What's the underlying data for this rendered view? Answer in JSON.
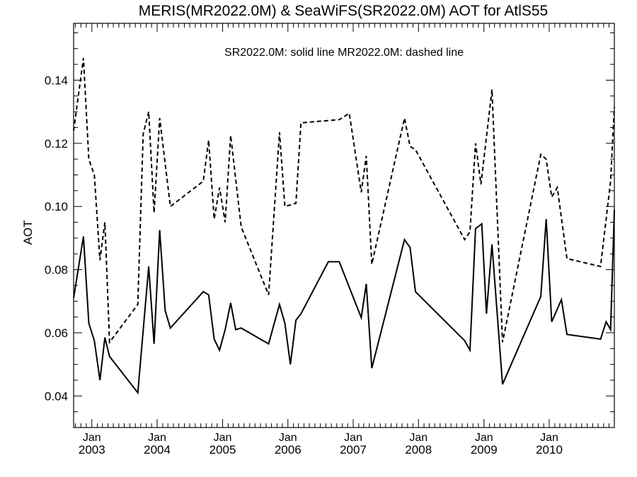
{
  "chart_data": {
    "type": "line",
    "title": "MERIS(MR2022.0M) & SeaWiFS(SR2022.0M)  AOT for AtlS55",
    "annotation": "SR2022.0M: solid line   MR2022.0M: dashed line",
    "xlabel": "",
    "ylabel": "AOT",
    "xlim": [
      "2002-09-21",
      "2010-12-31"
    ],
    "ylim": [
      0.03,
      0.158
    ],
    "y_ticks": [
      0.04,
      0.06,
      0.08,
      0.1,
      0.12,
      0.14
    ],
    "y_tick_labels": [
      "0.04",
      "0.06",
      "0.08",
      "0.10",
      "0.12",
      "0.14"
    ],
    "x_ticks": [
      {
        "date": "2003-01-01",
        "month": "Jan",
        "year": "2003"
      },
      {
        "date": "2004-01-01",
        "month": "Jan",
        "year": "2004"
      },
      {
        "date": "2005-01-01",
        "month": "Jan",
        "year": "2005"
      },
      {
        "date": "2006-01-01",
        "month": "Jan",
        "year": "2006"
      },
      {
        "date": "2007-01-01",
        "month": "Jan",
        "year": "2007"
      },
      {
        "date": "2008-01-01",
        "month": "Jan",
        "year": "2008"
      },
      {
        "date": "2009-01-01",
        "month": "Jan",
        "year": "2009"
      },
      {
        "date": "2010-01-01",
        "month": "Jan",
        "year": "2010"
      }
    ],
    "grid": false,
    "series": [
      {
        "name": "SR2022.0M",
        "style": "solid",
        "color": "#000000",
        "points": [
          [
            "2002-09-21",
            0.071
          ],
          [
            "2002-11-15",
            0.0905
          ],
          [
            "2002-12-15",
            0.063
          ],
          [
            "2003-01-15",
            0.0575
          ],
          [
            "2003-02-15",
            0.045
          ],
          [
            "2003-03-15",
            0.0585
          ],
          [
            "2003-04-10",
            0.0525
          ],
          [
            "2003-09-15",
            0.041
          ],
          [
            "2003-11-15",
            0.081
          ],
          [
            "2003-12-15",
            0.0565
          ],
          [
            "2004-01-15",
            0.0925
          ],
          [
            "2004-02-15",
            0.067
          ],
          [
            "2004-03-15",
            0.0615
          ],
          [
            "2004-09-15",
            0.073
          ],
          [
            "2004-10-15",
            0.072
          ],
          [
            "2004-11-15",
            0.058
          ],
          [
            "2004-12-15",
            0.0545
          ],
          [
            "2005-01-15",
            0.061
          ],
          [
            "2005-02-15",
            0.0695
          ],
          [
            "2005-03-15",
            0.061
          ],
          [
            "2005-04-15",
            0.0615
          ],
          [
            "2005-09-15",
            0.0565
          ],
          [
            "2005-11-15",
            0.069
          ],
          [
            "2005-12-15",
            0.063
          ],
          [
            "2006-01-15",
            0.05
          ],
          [
            "2006-02-15",
            0.064
          ],
          [
            "2006-03-15",
            0.066
          ],
          [
            "2006-08-15",
            0.0825
          ],
          [
            "2006-10-15",
            0.0825
          ],
          [
            "2007-02-15",
            0.0648
          ],
          [
            "2007-03-15",
            0.0755
          ],
          [
            "2007-04-15",
            0.0488
          ],
          [
            "2007-10-15",
            0.0895
          ],
          [
            "2007-11-15",
            0.087
          ],
          [
            "2007-12-15",
            0.073
          ],
          [
            "2008-09-15",
            0.0575
          ],
          [
            "2008-10-15",
            0.0545
          ],
          [
            "2008-11-15",
            0.093
          ],
          [
            "2008-12-20",
            0.0945
          ],
          [
            "2009-01-15",
            0.066
          ],
          [
            "2009-02-15",
            0.088
          ],
          [
            "2009-04-15",
            0.0437
          ],
          [
            "2009-11-15",
            0.0715
          ],
          [
            "2009-12-15",
            0.096
          ],
          [
            "2010-01-15",
            0.0635
          ],
          [
            "2010-03-10",
            0.0705
          ],
          [
            "2010-04-10",
            0.0595
          ],
          [
            "2010-10-15",
            0.058
          ],
          [
            "2010-11-15",
            0.0635
          ],
          [
            "2010-12-10",
            0.061
          ],
          [
            "2010-12-31",
            0.099
          ]
        ]
      },
      {
        "name": "MR2022.0M",
        "style": "dashed",
        "color": "#000000",
        "points": [
          [
            "2002-09-21",
            0.124
          ],
          [
            "2002-11-15",
            0.147
          ],
          [
            "2002-12-15",
            0.115
          ],
          [
            "2003-01-15",
            0.11
          ],
          [
            "2003-02-15",
            0.083
          ],
          [
            "2003-03-15",
            0.095
          ],
          [
            "2003-04-10",
            0.057
          ],
          [
            "2003-09-15",
            0.069
          ],
          [
            "2003-10-15",
            0.123
          ],
          [
            "2003-11-15",
            0.13
          ],
          [
            "2003-12-15",
            0.098
          ],
          [
            "2004-01-15",
            0.128
          ],
          [
            "2004-03-15",
            0.1
          ],
          [
            "2004-09-15",
            0.108
          ],
          [
            "2004-10-15",
            0.121
          ],
          [
            "2004-11-15",
            0.096
          ],
          [
            "2004-12-15",
            0.106
          ],
          [
            "2005-01-15",
            0.095
          ],
          [
            "2005-02-15",
            0.1225
          ],
          [
            "2005-04-15",
            0.0935
          ],
          [
            "2005-09-15",
            0.072
          ],
          [
            "2005-11-15",
            0.1235
          ],
          [
            "2005-12-15",
            0.1
          ],
          [
            "2006-02-15",
            0.101
          ],
          [
            "2006-03-15",
            0.1265
          ],
          [
            "2006-10-15",
            0.1275
          ],
          [
            "2006-12-10",
            0.1295
          ],
          [
            "2007-02-15",
            0.1045
          ],
          [
            "2007-03-15",
            0.116
          ],
          [
            "2007-04-15",
            0.0817
          ],
          [
            "2007-10-15",
            0.128
          ],
          [
            "2007-11-15",
            0.119
          ],
          [
            "2007-12-15",
            0.118
          ],
          [
            "2008-09-15",
            0.0895
          ],
          [
            "2008-10-15",
            0.092
          ],
          [
            "2008-11-15",
            0.12
          ],
          [
            "2008-12-15",
            0.107
          ],
          [
            "2009-02-15",
            0.137
          ],
          [
            "2009-04-15",
            0.057
          ],
          [
            "2009-11-15",
            0.1165
          ],
          [
            "2009-12-15",
            0.115
          ],
          [
            "2010-01-15",
            0.103
          ],
          [
            "2010-02-15",
            0.106
          ],
          [
            "2010-04-10",
            0.0835
          ],
          [
            "2010-10-15",
            0.081
          ],
          [
            "2010-12-10",
            0.108
          ],
          [
            "2010-12-31",
            0.1315
          ]
        ]
      }
    ]
  }
}
